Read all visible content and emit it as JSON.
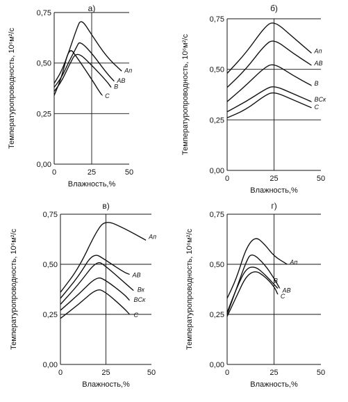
{
  "ylabel": "Температуропроводность, 10⁶м²/с",
  "xlabel": "Влажность,%",
  "chart_data": [
    {
      "type": "line",
      "panel_label": "а)",
      "xlim": [
        0,
        50
      ],
      "ylim": [
        0,
        0.75
      ],
      "xticks": [
        "0",
        "25",
        "50"
      ],
      "yticks": [
        "0,00",
        "0,25",
        "0,50",
        "0,75"
      ],
      "grid": {
        "x": [
          25
        ],
        "y": [
          0.25,
          0.5,
          0.75
        ]
      },
      "series": [
        {
          "name": "Aп",
          "x": [
            0,
            5,
            10,
            15,
            18,
            25,
            35,
            45
          ],
          "y": [
            0.4,
            0.46,
            0.56,
            0.67,
            0.72,
            0.64,
            0.53,
            0.46
          ]
        },
        {
          "name": "AB",
          "x": [
            0,
            5,
            10,
            15,
            17,
            25,
            35,
            40
          ],
          "y": [
            0.38,
            0.43,
            0.51,
            0.58,
            0.61,
            0.55,
            0.45,
            0.41
          ]
        },
        {
          "name": "B",
          "x": [
            0,
            5,
            10,
            15,
            25,
            35,
            38
          ],
          "y": [
            0.36,
            0.41,
            0.49,
            0.56,
            0.49,
            0.41,
            0.38
          ]
        },
        {
          "name": "C",
          "x": [
            0,
            5,
            10,
            15,
            25,
            30,
            32
          ],
          "y": [
            0.34,
            0.43,
            0.58,
            0.53,
            0.42,
            0.36,
            0.34
          ]
        }
      ]
    },
    {
      "type": "line",
      "panel_label": "б)",
      "xlim": [
        0,
        50
      ],
      "ylim": [
        0,
        0.75
      ],
      "xticks": [
        "0",
        "25",
        "50"
      ],
      "yticks": [
        "0,00",
        "0,25",
        "0,50",
        "0,75"
      ],
      "grid": {
        "x": [
          25
        ],
        "y": [
          0.25,
          0.5,
          0.75
        ]
      },
      "series": [
        {
          "name": "Aп",
          "x": [
            0,
            10,
            20,
            25,
            35,
            45
          ],
          "y": [
            0.48,
            0.58,
            0.71,
            0.74,
            0.66,
            0.58
          ]
        },
        {
          "name": "AB",
          "x": [
            0,
            10,
            20,
            25,
            35,
            45
          ],
          "y": [
            0.41,
            0.5,
            0.62,
            0.65,
            0.58,
            0.52
          ]
        },
        {
          "name": "B",
          "x": [
            0,
            10,
            20,
            25,
            35,
            45
          ],
          "y": [
            0.34,
            0.42,
            0.51,
            0.53,
            0.47,
            0.42
          ]
        },
        {
          "name": "BCк",
          "x": [
            0,
            10,
            20,
            25,
            35,
            45
          ],
          "y": [
            0.29,
            0.34,
            0.4,
            0.42,
            0.38,
            0.34
          ]
        },
        {
          "name": "C",
          "x": [
            0,
            10,
            20,
            25,
            35,
            45
          ],
          "y": [
            0.26,
            0.3,
            0.37,
            0.39,
            0.35,
            0.31
          ]
        }
      ]
    },
    {
      "type": "line",
      "panel_label": "в)",
      "xlim": [
        0,
        50
      ],
      "ylim": [
        0,
        0.75
      ],
      "xticks": [
        "0",
        "25",
        "50"
      ],
      "yticks": [
        "0,00",
        "0,25",
        "0,50",
        "0,75"
      ],
      "grid": {
        "x": [
          25
        ],
        "y": [
          0.25,
          0.5,
          0.75
        ]
      },
      "series": [
        {
          "name": "Aп",
          "x": [
            0,
            10,
            20,
            25,
            35,
            47
          ],
          "y": [
            0.36,
            0.48,
            0.67,
            0.72,
            0.68,
            0.62
          ]
        },
        {
          "name": "AB",
          "x": [
            0,
            10,
            18,
            25,
            35,
            38
          ],
          "y": [
            0.33,
            0.44,
            0.56,
            0.52,
            0.46,
            0.45
          ]
        },
        {
          "name": "Bк",
          "x": [
            0,
            10,
            20,
            25,
            35,
            40
          ],
          "y": [
            0.3,
            0.4,
            0.52,
            0.49,
            0.41,
            0.37
          ]
        },
        {
          "name": "BCк",
          "x": [
            0,
            10,
            20,
            25,
            35,
            38
          ],
          "y": [
            0.27,
            0.35,
            0.44,
            0.42,
            0.35,
            0.32
          ]
        },
        {
          "name": "C",
          "x": [
            0,
            10,
            20,
            25,
            35,
            38
          ],
          "y": [
            0.23,
            0.3,
            0.38,
            0.36,
            0.28,
            0.25
          ]
        }
      ]
    },
    {
      "type": "line",
      "panel_label": "г)",
      "xlim": [
        0,
        50
      ],
      "ylim": [
        0,
        0.75
      ],
      "xticks": [
        "0",
        "25",
        "50"
      ],
      "yticks": [
        "0,00",
        "0,25",
        "0,50",
        "0,75"
      ],
      "grid": {
        "x": [
          25
        ],
        "y": [
          0.25,
          0.5,
          0.75
        ]
      },
      "series": [
        {
          "name": "Aп",
          "x": [
            0,
            5,
            10,
            15,
            20,
            25,
            32
          ],
          "y": [
            0.33,
            0.43,
            0.58,
            0.64,
            0.6,
            0.54,
            0.5
          ]
        },
        {
          "name": "B",
          "x": [
            0,
            5,
            10,
            15,
            20,
            25,
            27
          ],
          "y": [
            0.26,
            0.38,
            0.48,
            0.49,
            0.45,
            0.4,
            0.38
          ]
        },
        {
          "name": "AB",
          "x": [
            0,
            5,
            10,
            13,
            20,
            25,
            28
          ],
          "y": [
            0.25,
            0.38,
            0.51,
            0.56,
            0.5,
            0.43,
            0.38
          ]
        },
        {
          "name": "C",
          "x": [
            0,
            5,
            10,
            15,
            20,
            25,
            27
          ],
          "y": [
            0.24,
            0.34,
            0.44,
            0.47,
            0.44,
            0.39,
            0.35
          ]
        }
      ]
    }
  ]
}
